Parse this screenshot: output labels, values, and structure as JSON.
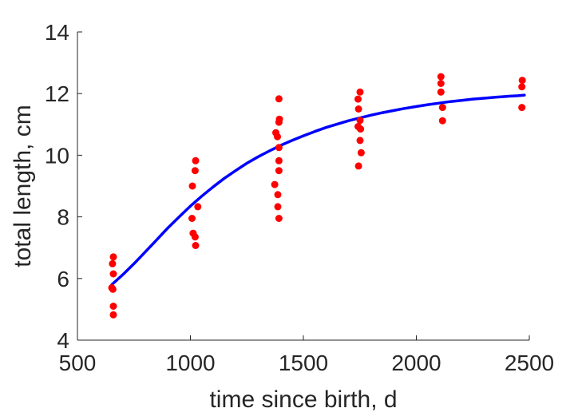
{
  "chart_data": {
    "type": "scatter",
    "title": "",
    "xlabel": "time since birth, d",
    "ylabel": "total length, cm",
    "xlim": [
      500,
      2500
    ],
    "ylim": [
      4,
      14
    ],
    "xticks": [
      500,
      1000,
      1500,
      2000,
      2500
    ],
    "yticks": [
      4,
      6,
      8,
      10,
      12,
      14
    ],
    "xtick_labels": [
      "500",
      "1000",
      "1500",
      "2000",
      "2500"
    ],
    "ytick_labels": [
      "4",
      "6",
      "8",
      "10",
      "12",
      "14"
    ],
    "grid": false,
    "legend": "none",
    "series": [
      {
        "kind": "scatter",
        "color": "#ff0000",
        "points": [
          [
            659,
            6.7
          ],
          [
            655,
            6.48
          ],
          [
            659,
            6.15
          ],
          [
            652,
            5.7
          ],
          [
            657,
            5.65
          ],
          [
            659,
            5.1
          ],
          [
            659,
            4.82
          ],
          [
            1023,
            9.82
          ],
          [
            1021,
            9.5
          ],
          [
            1009,
            9.0
          ],
          [
            1033,
            8.33
          ],
          [
            1007,
            7.95
          ],
          [
            1012,
            7.47
          ],
          [
            1021,
            7.35
          ],
          [
            1023,
            7.07
          ],
          [
            1392,
            11.83
          ],
          [
            1394,
            11.17
          ],
          [
            1392,
            11.07
          ],
          [
            1378,
            10.73
          ],
          [
            1385,
            10.6
          ],
          [
            1392,
            10.25
          ],
          [
            1392,
            9.82
          ],
          [
            1392,
            9.5
          ],
          [
            1373,
            9.05
          ],
          [
            1387,
            8.72
          ],
          [
            1387,
            8.33
          ],
          [
            1392,
            7.95
          ],
          [
            1751,
            12.05
          ],
          [
            1742,
            11.82
          ],
          [
            1744,
            11.5
          ],
          [
            1751,
            11.13
          ],
          [
            1742,
            10.93
          ],
          [
            1753,
            10.85
          ],
          [
            1751,
            10.48
          ],
          [
            1756,
            10.08
          ],
          [
            1744,
            9.65
          ],
          [
            2109,
            12.55
          ],
          [
            2109,
            12.33
          ],
          [
            2109,
            12.05
          ],
          [
            2116,
            11.55
          ],
          [
            2116,
            11.12
          ],
          [
            2469,
            12.43
          ],
          [
            2467,
            12.22
          ],
          [
            2467,
            11.55
          ]
        ]
      },
      {
        "kind": "line",
        "color": "#0000ff",
        "points": [
          [
            652,
            5.8
          ],
          [
            700,
            6.12
          ],
          [
            750,
            6.48
          ],
          [
            800,
            6.86
          ],
          [
            850,
            7.25
          ],
          [
            900,
            7.64
          ],
          [
            950,
            8.0
          ],
          [
            1000,
            8.35
          ],
          [
            1050,
            8.67
          ],
          [
            1100,
            8.97
          ],
          [
            1150,
            9.25
          ],
          [
            1200,
            9.5
          ],
          [
            1250,
            9.74
          ],
          [
            1300,
            9.95
          ],
          [
            1350,
            10.14
          ],
          [
            1400,
            10.32
          ],
          [
            1450,
            10.48
          ],
          [
            1500,
            10.63
          ],
          [
            1550,
            10.77
          ],
          [
            1600,
            10.9
          ],
          [
            1650,
            11.01
          ],
          [
            1700,
            11.12
          ],
          [
            1750,
            11.21
          ],
          [
            1800,
            11.3
          ],
          [
            1850,
            11.38
          ],
          [
            1900,
            11.45
          ],
          [
            1950,
            11.52
          ],
          [
            2000,
            11.58
          ],
          [
            2050,
            11.64
          ],
          [
            2100,
            11.69
          ],
          [
            2150,
            11.74
          ],
          [
            2200,
            11.78
          ],
          [
            2250,
            11.82
          ],
          [
            2300,
            11.85
          ],
          [
            2350,
            11.88
          ],
          [
            2400,
            11.91
          ],
          [
            2450,
            11.93
          ],
          [
            2478,
            11.95
          ]
        ]
      }
    ]
  }
}
